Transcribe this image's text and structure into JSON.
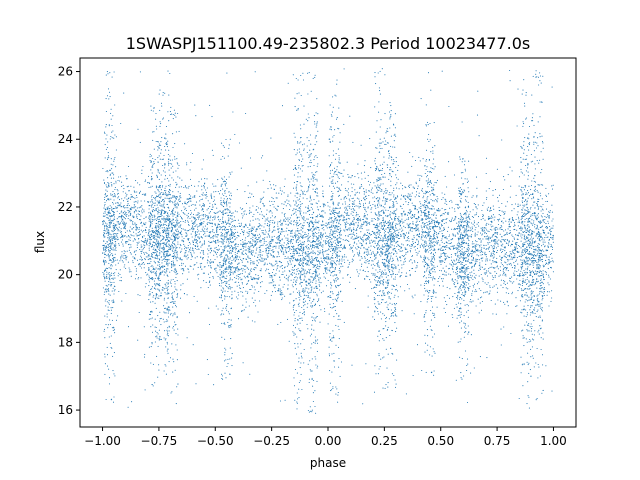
{
  "chart_data": {
    "type": "scatter",
    "title": "1SWASPJ151100.49-235802.3 Period 10023477.0s",
    "xlabel": "phase",
    "ylabel": "flux",
    "xlim": [
      -1.1,
      1.1
    ],
    "ylim": [
      15.5,
      26.4
    ],
    "grid": false,
    "legend": "none",
    "x_ticks": [
      -1.0,
      -0.75,
      -0.5,
      -0.25,
      0.0,
      0.25,
      0.5,
      0.75,
      1.0
    ],
    "x_tick_labels": [
      "−1.00",
      "−0.75",
      "−0.50",
      "−0.25",
      "0.00",
      "0.25",
      "0.50",
      "0.75",
      "1.00"
    ],
    "y_ticks": [
      16,
      18,
      20,
      22,
      24,
      26
    ],
    "y_tick_labels": [
      "16",
      "18",
      "20",
      "22",
      "24",
      "26"
    ],
    "series": [
      {
        "color": "#1f77b4",
        "x_range": [
          -1.0,
          1.0
        ],
        "baseline_flux": 21.0,
        "typical_spread": [
          19.8,
          22.3
        ],
        "full_spread": [
          16.0,
          26.1
        ],
        "bursts": [
          {
            "phase": -0.97,
            "low": 16.2,
            "high": 26.0
          },
          {
            "phase": -0.77,
            "low": 16.7,
            "high": 25.0
          },
          {
            "phase": -0.73,
            "low": 17.0,
            "high": 25.5
          },
          {
            "phase": -0.69,
            "low": 16.5,
            "high": 25.0
          },
          {
            "phase": -0.45,
            "low": 16.9,
            "high": 24.0
          },
          {
            "phase": -0.13,
            "low": 16.0,
            "high": 26.0
          },
          {
            "phase": -0.07,
            "low": 15.9,
            "high": 26.0
          },
          {
            "phase": 0.03,
            "low": 16.4,
            "high": 26.0
          },
          {
            "phase": 0.23,
            "low": 16.5,
            "high": 26.1
          },
          {
            "phase": 0.28,
            "low": 16.6,
            "high": 25.0
          },
          {
            "phase": 0.45,
            "low": 17.0,
            "high": 24.5
          },
          {
            "phase": 0.6,
            "low": 16.9,
            "high": 23.5
          },
          {
            "phase": 0.88,
            "low": 16.0,
            "high": 25.5
          },
          {
            "phase": 0.93,
            "low": 16.3,
            "high": 26.1
          }
        ]
      }
    ]
  }
}
